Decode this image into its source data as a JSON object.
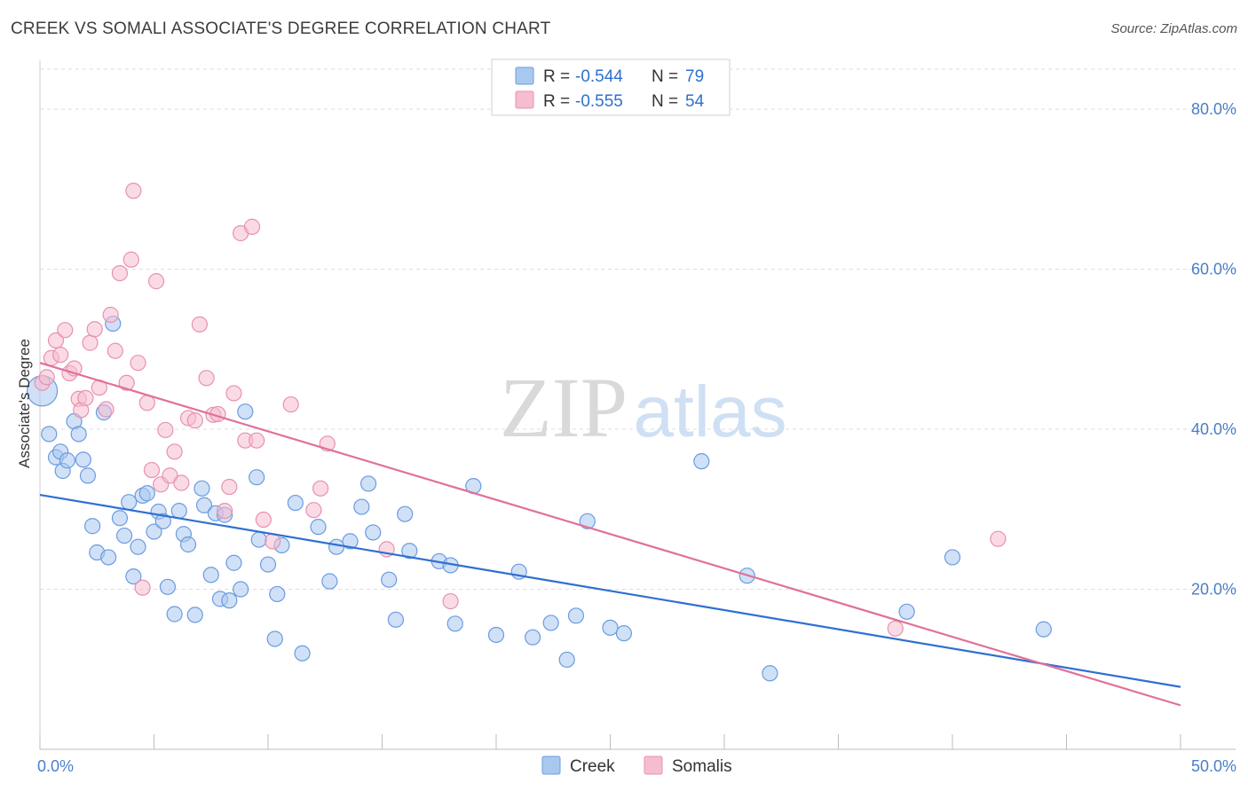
{
  "title": "CREEK VS SOMALI ASSOCIATE'S DEGREE CORRELATION CHART",
  "source": "Source: ZipAtlas.com",
  "watermark": {
    "zip": "ZIP",
    "atlas": "atlas"
  },
  "colors": {
    "creek_fill": "#a9c8f0",
    "creek_stroke": "#6b9be0",
    "creek_line": "#2f6fd0",
    "somali_fill": "#f6bdd0",
    "somali_stroke": "#e891b0",
    "somali_line": "#e0709a",
    "tick_text": "#4a7fc9",
    "grid": "#dddddd"
  },
  "legend": {
    "rows": [
      {
        "r_label": "R =",
        "r_value": "-0.544",
        "n_label": "N =",
        "n_value": "79"
      },
      {
        "r_label": "R =",
        "r_value": "-0.555",
        "n_label": "N =",
        "n_value": "54"
      }
    ]
  },
  "chart_data": {
    "type": "scatter",
    "ylabel": "Associate's Degree",
    "xlim": [
      0,
      50
    ],
    "ylim": [
      0,
      85
    ],
    "y_ticks": [
      20,
      40,
      60,
      80
    ],
    "y_tick_labels": [
      "20.0%",
      "40.0%",
      "60.0%",
      "80.0%"
    ],
    "x_tick_labels": [
      "0.0%",
      "50.0%"
    ],
    "grid": "horizontal dashed",
    "legend_placement": "top-center",
    "series": [
      {
        "name": "Creek",
        "r": -0.544,
        "n": 79,
        "trend": {
          "x0": 0,
          "y0": 31.8,
          "x1": 50,
          "y1": 7.8
        },
        "points": [
          [
            0.1,
            44.8,
            "L"
          ],
          [
            0.4,
            39.4
          ],
          [
            0.7,
            36.5
          ],
          [
            0.9,
            37.2
          ],
          [
            1.0,
            34.8
          ],
          [
            1.2,
            36.1
          ],
          [
            1.5,
            41.0
          ],
          [
            1.7,
            39.4
          ],
          [
            1.9,
            36.2
          ],
          [
            2.1,
            34.2
          ],
          [
            2.3,
            27.9
          ],
          [
            2.5,
            24.6
          ],
          [
            2.8,
            42.1
          ],
          [
            3.0,
            24.0
          ],
          [
            3.2,
            53.2
          ],
          [
            3.5,
            28.9
          ],
          [
            3.7,
            26.7
          ],
          [
            3.9,
            30.9
          ],
          [
            4.1,
            21.6
          ],
          [
            4.3,
            25.3
          ],
          [
            4.5,
            31.7
          ],
          [
            4.7,
            32.0
          ],
          [
            5.0,
            27.2
          ],
          [
            5.2,
            29.7
          ],
          [
            5.4,
            28.5
          ],
          [
            5.6,
            20.3
          ],
          [
            5.9,
            16.9
          ],
          [
            6.1,
            29.8
          ],
          [
            6.3,
            26.9
          ],
          [
            6.5,
            25.6
          ],
          [
            6.8,
            16.8
          ],
          [
            7.1,
            32.6
          ],
          [
            7.2,
            30.5
          ],
          [
            7.5,
            21.8
          ],
          [
            7.7,
            29.5
          ],
          [
            7.9,
            18.8
          ],
          [
            8.1,
            29.3
          ],
          [
            8.3,
            18.6
          ],
          [
            8.5,
            23.3
          ],
          [
            8.8,
            20.0
          ],
          [
            9.0,
            42.2
          ],
          [
            9.5,
            34.0
          ],
          [
            9.6,
            26.2
          ],
          [
            10.0,
            23.1
          ],
          [
            10.3,
            13.8
          ],
          [
            10.4,
            19.4
          ],
          [
            10.6,
            25.5
          ],
          [
            11.2,
            30.8
          ],
          [
            11.5,
            12.0
          ],
          [
            12.2,
            27.8
          ],
          [
            12.7,
            21.0
          ],
          [
            13.0,
            25.3
          ],
          [
            13.6,
            26.0
          ],
          [
            14.1,
            30.3
          ],
          [
            14.4,
            33.2
          ],
          [
            14.6,
            27.1
          ],
          [
            15.3,
            21.2
          ],
          [
            15.6,
            16.2
          ],
          [
            16.0,
            29.4
          ],
          [
            16.2,
            24.8
          ],
          [
            17.5,
            23.5
          ],
          [
            18.0,
            23.0
          ],
          [
            18.2,
            15.7
          ],
          [
            19.0,
            32.9
          ],
          [
            20.0,
            14.3
          ],
          [
            21.0,
            22.2
          ],
          [
            21.6,
            14.0
          ],
          [
            22.4,
            15.8
          ],
          [
            23.1,
            11.2
          ],
          [
            23.5,
            16.7
          ],
          [
            24.0,
            28.5
          ],
          [
            25.0,
            15.2
          ],
          [
            25.6,
            14.5
          ],
          [
            29.0,
            36.0
          ],
          [
            31.0,
            21.7
          ],
          [
            32.0,
            9.5
          ],
          [
            38.0,
            17.2
          ],
          [
            40.0,
            24.0
          ],
          [
            44.0,
            15.0
          ]
        ]
      },
      {
        "name": "Somalis",
        "r": -0.555,
        "n": 54,
        "trend": {
          "x0": 0,
          "y0": 48.3,
          "x1": 50,
          "y1": 5.5
        },
        "points": [
          [
            0.1,
            45.8
          ],
          [
            0.3,
            46.5
          ],
          [
            0.5,
            48.9
          ],
          [
            0.7,
            51.1
          ],
          [
            0.9,
            49.3
          ],
          [
            1.1,
            52.4
          ],
          [
            1.3,
            47.0
          ],
          [
            1.5,
            47.6
          ],
          [
            1.7,
            43.8
          ],
          [
            1.8,
            42.4
          ],
          [
            2.0,
            43.9
          ],
          [
            2.2,
            50.8
          ],
          [
            2.4,
            52.5
          ],
          [
            2.6,
            45.2
          ],
          [
            2.9,
            42.5
          ],
          [
            3.1,
            54.3
          ],
          [
            3.3,
            49.8
          ],
          [
            3.5,
            59.5
          ],
          [
            3.8,
            45.8
          ],
          [
            4.0,
            61.2
          ],
          [
            4.1,
            69.8
          ],
          [
            4.3,
            48.3
          ],
          [
            4.5,
            20.2
          ],
          [
            4.7,
            43.3
          ],
          [
            4.9,
            34.9
          ],
          [
            5.1,
            58.5
          ],
          [
            5.3,
            33.1
          ],
          [
            5.5,
            39.9
          ],
          [
            5.7,
            34.2
          ],
          [
            5.9,
            37.2
          ],
          [
            6.2,
            33.3
          ],
          [
            6.5,
            41.4
          ],
          [
            6.8,
            41.1
          ],
          [
            7.0,
            53.1
          ],
          [
            7.3,
            46.4
          ],
          [
            7.6,
            41.8
          ],
          [
            7.8,
            41.9
          ],
          [
            8.1,
            29.8
          ],
          [
            8.3,
            32.8
          ],
          [
            8.5,
            44.5
          ],
          [
            8.8,
            64.5
          ],
          [
            9.0,
            38.6
          ],
          [
            9.3,
            65.3
          ],
          [
            9.5,
            38.6
          ],
          [
            9.8,
            28.7
          ],
          [
            10.2,
            26.0
          ],
          [
            11.0,
            43.1
          ],
          [
            12.0,
            29.9
          ],
          [
            12.3,
            32.6
          ],
          [
            12.6,
            38.2
          ],
          [
            15.2,
            25.0
          ],
          [
            18.0,
            18.5
          ],
          [
            37.5,
            15.1
          ],
          [
            42.0,
            26.3
          ]
        ]
      }
    ]
  },
  "bottom_legend": [
    {
      "label": "Creek"
    },
    {
      "label": "Somalis"
    }
  ]
}
